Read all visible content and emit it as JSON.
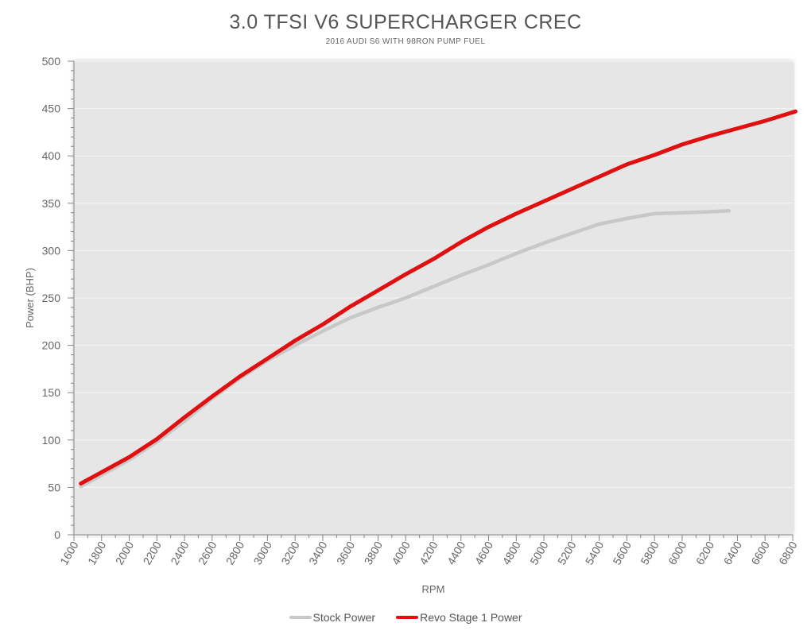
{
  "chart_data": {
    "type": "line",
    "title": "3.0 TFSI V6 SUPERCHARGER CREC",
    "subtitle": "2016 AUDI S6 WITH 98RON PUMP FUEL",
    "xlabel": "RPM",
    "ylabel": "Power (BHP)",
    "xlim": [
      1600,
      6800
    ],
    "ylim": [
      0,
      500
    ],
    "x_ticks": [
      "1600",
      "1800",
      "2000",
      "2200",
      "2400",
      "2600",
      "2800",
      "3000",
      "3200",
      "3400",
      "3600",
      "3800",
      "4000",
      "4200",
      "4400",
      "4600",
      "4800",
      "5000",
      "5200",
      "5400",
      "5600",
      "5800",
      "6000",
      "6200",
      "6400",
      "6600",
      "6800"
    ],
    "y_ticks": [
      "0",
      "50",
      "100",
      "150",
      "200",
      "250",
      "300",
      "350",
      "400",
      "450",
      "500"
    ],
    "grid": "horizontal",
    "legend_position": "bottom",
    "series": [
      {
        "name": "Stock Power",
        "color": "#c8c8c8",
        "points": [
          [
            1650,
            51
          ],
          [
            1800,
            63
          ],
          [
            2000,
            79
          ],
          [
            2200,
            98
          ],
          [
            2400,
            120
          ],
          [
            2600,
            144
          ],
          [
            2800,
            165
          ],
          [
            3000,
            184
          ],
          [
            3200,
            200
          ],
          [
            3400,
            215
          ],
          [
            3600,
            229
          ],
          [
            3800,
            240
          ],
          [
            4000,
            250
          ],
          [
            4200,
            262
          ],
          [
            4400,
            274
          ],
          [
            4600,
            285
          ],
          [
            4800,
            297
          ],
          [
            5000,
            308
          ],
          [
            5200,
            318
          ],
          [
            5400,
            328
          ],
          [
            5600,
            334
          ],
          [
            5800,
            339
          ],
          [
            6000,
            340
          ],
          [
            6200,
            341
          ],
          [
            6340,
            342
          ]
        ]
      },
      {
        "name": "Revo Stage 1 Power",
        "color": "#e01010",
        "points": [
          [
            1650,
            54
          ],
          [
            1800,
            66
          ],
          [
            2000,
            82
          ],
          [
            2200,
            101
          ],
          [
            2400,
            124
          ],
          [
            2600,
            146
          ],
          [
            2800,
            167
          ],
          [
            3000,
            186
          ],
          [
            3200,
            205
          ],
          [
            3400,
            222
          ],
          [
            3600,
            241
          ],
          [
            3800,
            258
          ],
          [
            4000,
            275
          ],
          [
            4200,
            291
          ],
          [
            4400,
            309
          ],
          [
            4600,
            325
          ],
          [
            4800,
            339
          ],
          [
            5000,
            352
          ],
          [
            5200,
            365
          ],
          [
            5400,
            378
          ],
          [
            5600,
            391
          ],
          [
            5800,
            401
          ],
          [
            6000,
            412
          ],
          [
            6200,
            421
          ],
          [
            6400,
            429
          ],
          [
            6600,
            437
          ],
          [
            6820,
            447
          ]
        ]
      }
    ]
  }
}
